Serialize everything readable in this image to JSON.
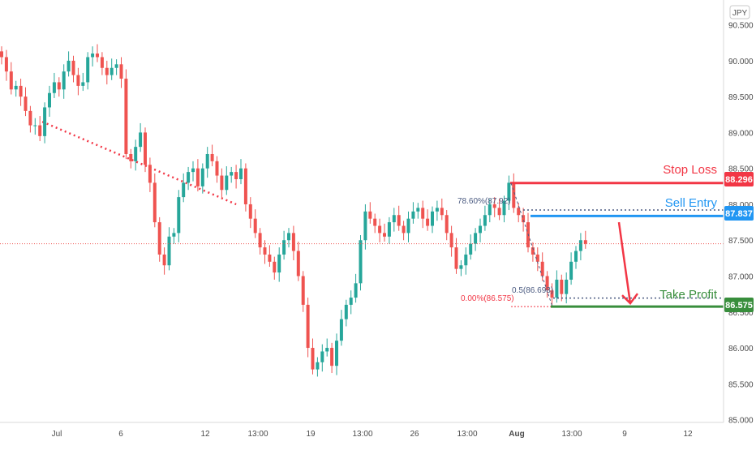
{
  "currency_badge": "JPY",
  "colors": {
    "up": "#26a69a",
    "down": "#ef5350",
    "stop": "#f23645",
    "entry": "#2196f3",
    "profit": "#388e3c",
    "fib": "#4a5a80",
    "axis_text": "#4a4a4a"
  },
  "chart_data": {
    "type": "candlestick",
    "symbol_currency": "JPY",
    "x_ticks": [
      "Jul",
      "6",
      "12",
      "13:00",
      "19",
      "13:00",
      "26",
      "13:00",
      "Aug",
      "13:00",
      "9",
      "12"
    ],
    "y_ticks": [
      "85.000",
      "85.500",
      "86.000",
      "86.500",
      "87.000",
      "87.500",
      "88.000",
      "88.500",
      "89.000",
      "89.500",
      "90.000",
      "90.500"
    ],
    "ylim": [
      84.95,
      90.62
    ],
    "grid": false,
    "levels": [
      {
        "label": "Stop Loss",
        "value": "88.296"
      },
      {
        "label": "Sell Entry",
        "value": "87.837"
      },
      {
        "label": "Take Profit",
        "value": "86.575"
      }
    ],
    "fib_labels": [
      {
        "text": "78.60%(87.92)",
        "value": 87.92
      },
      {
        "text": "0.5(86.693)",
        "value": 86.693
      },
      {
        "text": "0.00%(86.575)",
        "value": 86.575
      }
    ],
    "current_price": 87.45,
    "trendline": {
      "from": [
        8.5,
        89.15
      ],
      "to": [
        49,
        88.0
      ]
    },
    "forecast": {
      "from": [
        43.4,
        87.75
      ],
      "to": [
        44.6,
        86.62
      ]
    },
    "closes": [
      90.05,
      89.85,
      89.6,
      89.65,
      89.5,
      89.3,
      89.1,
      89.1,
      88.95,
      89.35,
      89.55,
      89.7,
      89.6,
      89.85,
      90.0,
      89.8,
      89.65,
      89.7,
      90.05,
      90.1,
      90.05,
      89.9,
      89.8,
      89.9,
      89.95,
      89.75,
      88.7,
      88.6,
      88.8,
      89.0,
      88.55,
      88.3,
      87.75,
      87.3,
      87.15,
      87.55,
      87.6,
      88.1,
      88.3,
      88.45,
      88.5,
      88.25,
      88.5,
      88.7,
      88.6,
      88.4,
      88.2,
      88.4,
      88.45,
      88.35,
      88.5,
      88.0,
      87.8,
      87.6,
      87.4,
      87.3,
      87.2,
      87.05,
      87.3,
      87.5,
      87.6,
      87.35,
      87.0,
      86.6,
      86.0,
      85.7,
      85.8,
      85.95,
      86.0,
      85.75,
      86.1,
      86.4,
      86.6,
      86.7,
      86.9,
      87.5,
      87.9,
      87.8,
      87.7,
      87.6,
      87.55,
      87.75,
      87.85,
      87.7,
      87.6,
      87.8,
      87.9,
      87.95,
      87.8,
      87.7,
      87.9,
      87.95,
      87.85,
      87.6,
      87.4,
      87.1,
      87.15,
      87.3,
      87.45,
      87.6,
      87.7,
      87.85,
      88.0,
      87.95,
      87.85,
      88.05,
      88.3,
      87.95,
      87.85,
      87.75,
      87.4,
      87.3,
      87.2,
      87.0,
      86.8,
      86.7,
      86.95,
      86.75,
      86.95,
      87.2,
      87.35,
      87.5,
      87.45
    ]
  }
}
